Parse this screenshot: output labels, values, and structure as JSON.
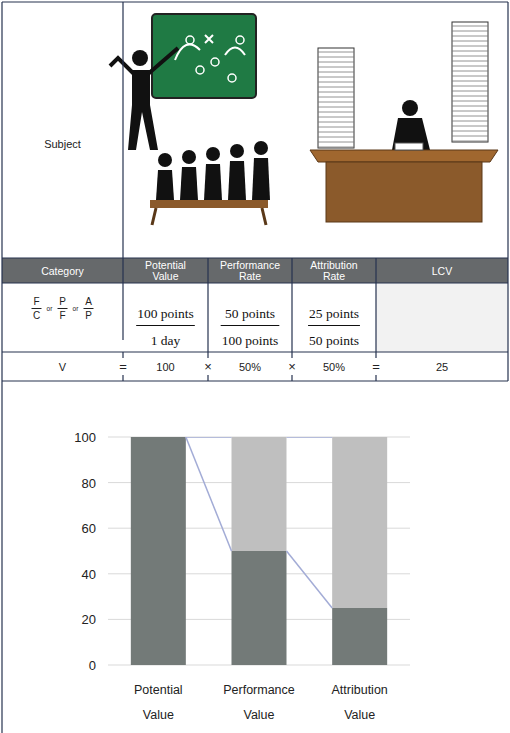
{
  "table": {
    "subject_label": "Subject",
    "header": [
      "Category",
      "Potential Value",
      "Performance Rate",
      "Attribution Rate",
      "LCV"
    ],
    "category_formula": {
      "fractions": [
        {
          "numerator": "F",
          "denominator": "C"
        },
        {
          "numerator": "P",
          "denominator": "F"
        },
        {
          "numerator": "A",
          "denominator": "P"
        }
      ],
      "separator": "or"
    },
    "fractions": [
      {
        "numerator": "100 points",
        "denominator": "1 day"
      },
      {
        "numerator": "50 points",
        "denominator": "100 points"
      },
      {
        "numerator": "25 points",
        "denominator": "50 points"
      }
    ],
    "formula": {
      "variable": "V",
      "operators": [
        "=",
        "×",
        "×",
        "="
      ],
      "values": [
        "100",
        "50%",
        "50%",
        "25"
      ]
    }
  },
  "chart_data": {
    "type": "bar",
    "stacked": true,
    "grid": true,
    "categories": [
      "Potential Value",
      "Performance Value",
      "Attribution Value"
    ],
    "series": [
      {
        "color": "#737a78",
        "values": [
          100,
          50,
          25
        ]
      },
      {
        "color": "#bfbfbf",
        "values": [
          0,
          50,
          75
        ]
      }
    ],
    "ylim": [
      0,
      100
    ],
    "yticks": [
      0,
      20,
      40,
      60,
      80,
      100
    ]
  }
}
